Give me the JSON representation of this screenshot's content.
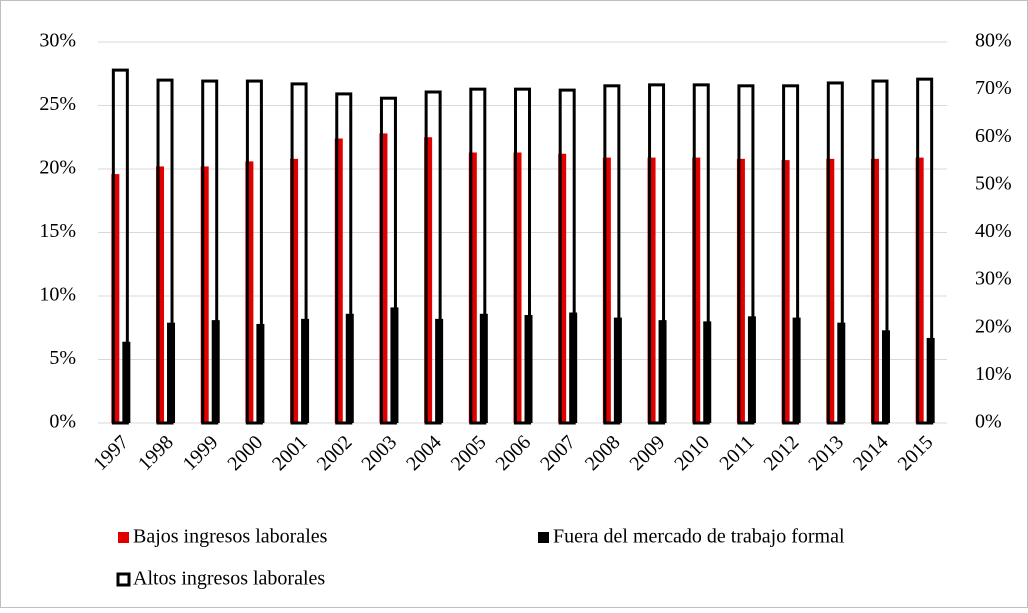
{
  "chart_data": {
    "type": "bar",
    "categories": [
      "1997",
      "1998",
      "1999",
      "2000",
      "2001",
      "2002",
      "2003",
      "2004",
      "2005",
      "2006",
      "2007",
      "2008",
      "2009",
      "2010",
      "2011",
      "2012",
      "2013",
      "2014",
      "2015"
    ],
    "series": [
      {
        "name": "Bajos ingresos laborales",
        "color": "#e00000",
        "values": [
          19.6,
          20.2,
          20.2,
          20.6,
          20.8,
          22.4,
          22.8,
          22.5,
          21.3,
          21.3,
          21.2,
          20.9,
          20.9,
          20.9,
          20.8,
          20.7,
          20.8,
          20.8,
          20.9
        ]
      },
      {
        "name": "Fuera del mercado de trabajo formal",
        "color": "#000000",
        "values": [
          6.4,
          7.9,
          8.1,
          7.8,
          8.2,
          8.6,
          9.1,
          8.2,
          8.6,
          8.5,
          8.7,
          8.3,
          8.1,
          8.0,
          8.4,
          8.3,
          7.9,
          7.3,
          6.7
        ]
      },
      {
        "name": "Altos ingresos laborales",
        "color": "#ffffff",
        "axis": "y2",
        "values": [
          74.1,
          72.0,
          71.8,
          71.8,
          71.2,
          69.1,
          68.2,
          69.5,
          70.1,
          70.1,
          69.9,
          70.8,
          71.0,
          71.0,
          70.8,
          70.8,
          71.4,
          71.8,
          72.2
        ]
      }
    ],
    "ylim": [
      0,
      30
    ],
    "yticks": [
      {
        "value": 0,
        "label": "0%"
      },
      {
        "value": 5,
        "label": "5%"
      },
      {
        "value": 10,
        "label": "10%"
      },
      {
        "value": 15,
        "label": "15%"
      },
      {
        "value": 20,
        "label": "20%"
      },
      {
        "value": 25,
        "label": "25%"
      },
      {
        "value": 30,
        "label": "30%"
      }
    ],
    "y2lim": [
      0,
      80
    ],
    "y2ticks": [
      {
        "value": 0,
        "label": "0%"
      },
      {
        "value": 10,
        "label": "10%"
      },
      {
        "value": 20,
        "label": "20%"
      },
      {
        "value": 30,
        "label": "30%"
      },
      {
        "value": 40,
        "label": "40%"
      },
      {
        "value": 50,
        "label": "50%"
      },
      {
        "value": 60,
        "label": "60%"
      },
      {
        "value": 70,
        "label": "70%"
      },
      {
        "value": 80,
        "label": "80%"
      }
    ],
    "grid": true,
    "legend": "bottom"
  }
}
